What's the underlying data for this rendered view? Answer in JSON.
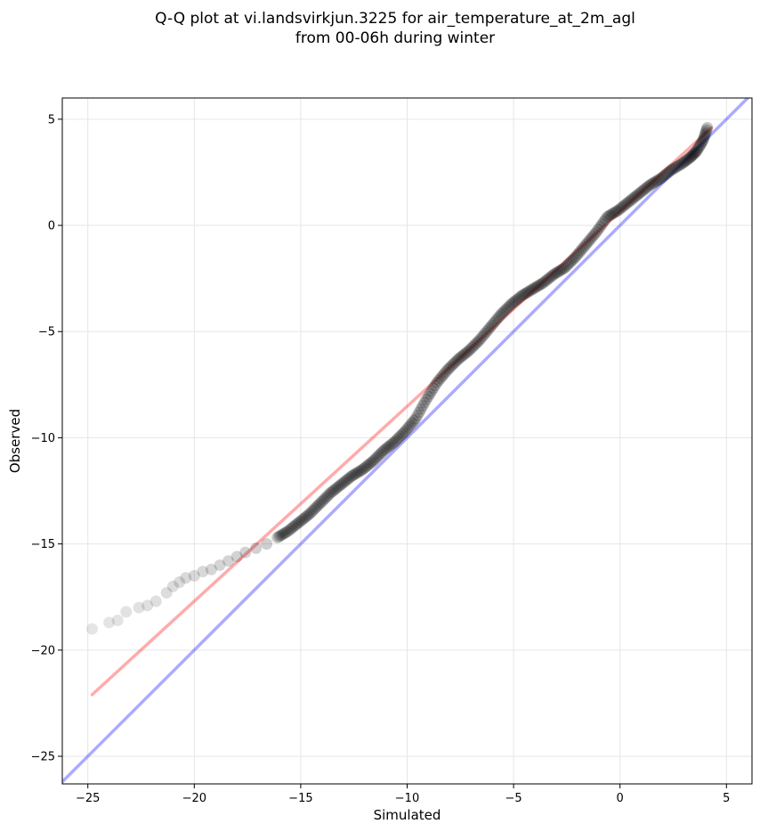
{
  "chart_data": {
    "type": "scatter",
    "title_lines": [
      "Q-Q plot at vi.landsvirkjun.3225 for air_temperature_at_2m_agl",
      "from 00-06h during winter"
    ],
    "xlabel": "Simulated",
    "ylabel": "Observed",
    "xlim": [
      -26.2,
      6.2
    ],
    "ylim": [
      -26.3,
      6.0
    ],
    "xticks": [
      -25,
      -20,
      -15,
      -10,
      -5,
      0,
      5
    ],
    "yticks": [
      5,
      0,
      -5,
      -10,
      -15,
      -20,
      -25
    ],
    "grid": true,
    "colors": {
      "points": "#000000",
      "fit_line": "#ff0000",
      "identity_line": "#0000ff",
      "grid": "#e6e6e6"
    },
    "fit_line": {
      "x": [
        -24.8,
        4.3
      ],
      "y": [
        -22.1,
        4.6
      ]
    },
    "identity_line": {
      "x": [
        -26.2,
        6.2
      ],
      "y": [
        -26.2,
        6.2
      ]
    },
    "quantile_points": {
      "x": [
        -24.8,
        -24.0,
        -23.6,
        -23.2,
        -22.6,
        -22.2,
        -21.8,
        -21.3,
        -21.0,
        -20.7,
        -20.4,
        -20.0,
        -19.6,
        -19.2,
        -18.8,
        -18.4,
        -18.0,
        -17.6,
        -17.1,
        -16.6,
        -16.1,
        -15.6,
        -15.1,
        -14.6,
        -14.1,
        -13.6,
        -13.1,
        -12.6,
        -12.1,
        -11.6,
        -11.1,
        -10.6,
        -10.1,
        -9.6,
        -9.1,
        -8.6,
        -8.1,
        -7.6,
        -7.1,
        -6.6,
        -6.1,
        -5.6,
        -5.1,
        -4.6,
        -4.1,
        -3.6,
        -3.1,
        -2.6,
        -2.1,
        -1.6,
        -1.1,
        -0.6,
        -0.1,
        0.4,
        0.9,
        1.4,
        1.9,
        2.4,
        2.9,
        3.3,
        3.6,
        3.9,
        4.1
      ],
      "y": [
        -19.0,
        -18.7,
        -18.6,
        -18.2,
        -18.0,
        -17.9,
        -17.7,
        -17.3,
        -17.0,
        -16.8,
        -16.6,
        -16.5,
        -16.3,
        -16.2,
        -16.0,
        -15.8,
        -15.6,
        -15.4,
        -15.2,
        -15.0,
        -14.7,
        -14.4,
        -14.0,
        -13.6,
        -13.1,
        -12.6,
        -12.2,
        -11.8,
        -11.5,
        -11.1,
        -10.6,
        -10.2,
        -9.7,
        -9.1,
        -8.2,
        -7.4,
        -6.8,
        -6.3,
        -5.9,
        -5.4,
        -4.8,
        -4.2,
        -3.7,
        -3.3,
        -3.0,
        -2.7,
        -2.3,
        -2.0,
        -1.5,
        -0.9,
        -0.3,
        0.4,
        0.7,
        1.1,
        1.5,
        1.9,
        2.2,
        2.6,
        2.9,
        3.2,
        3.5,
        4.0,
        4.6
      ]
    }
  }
}
